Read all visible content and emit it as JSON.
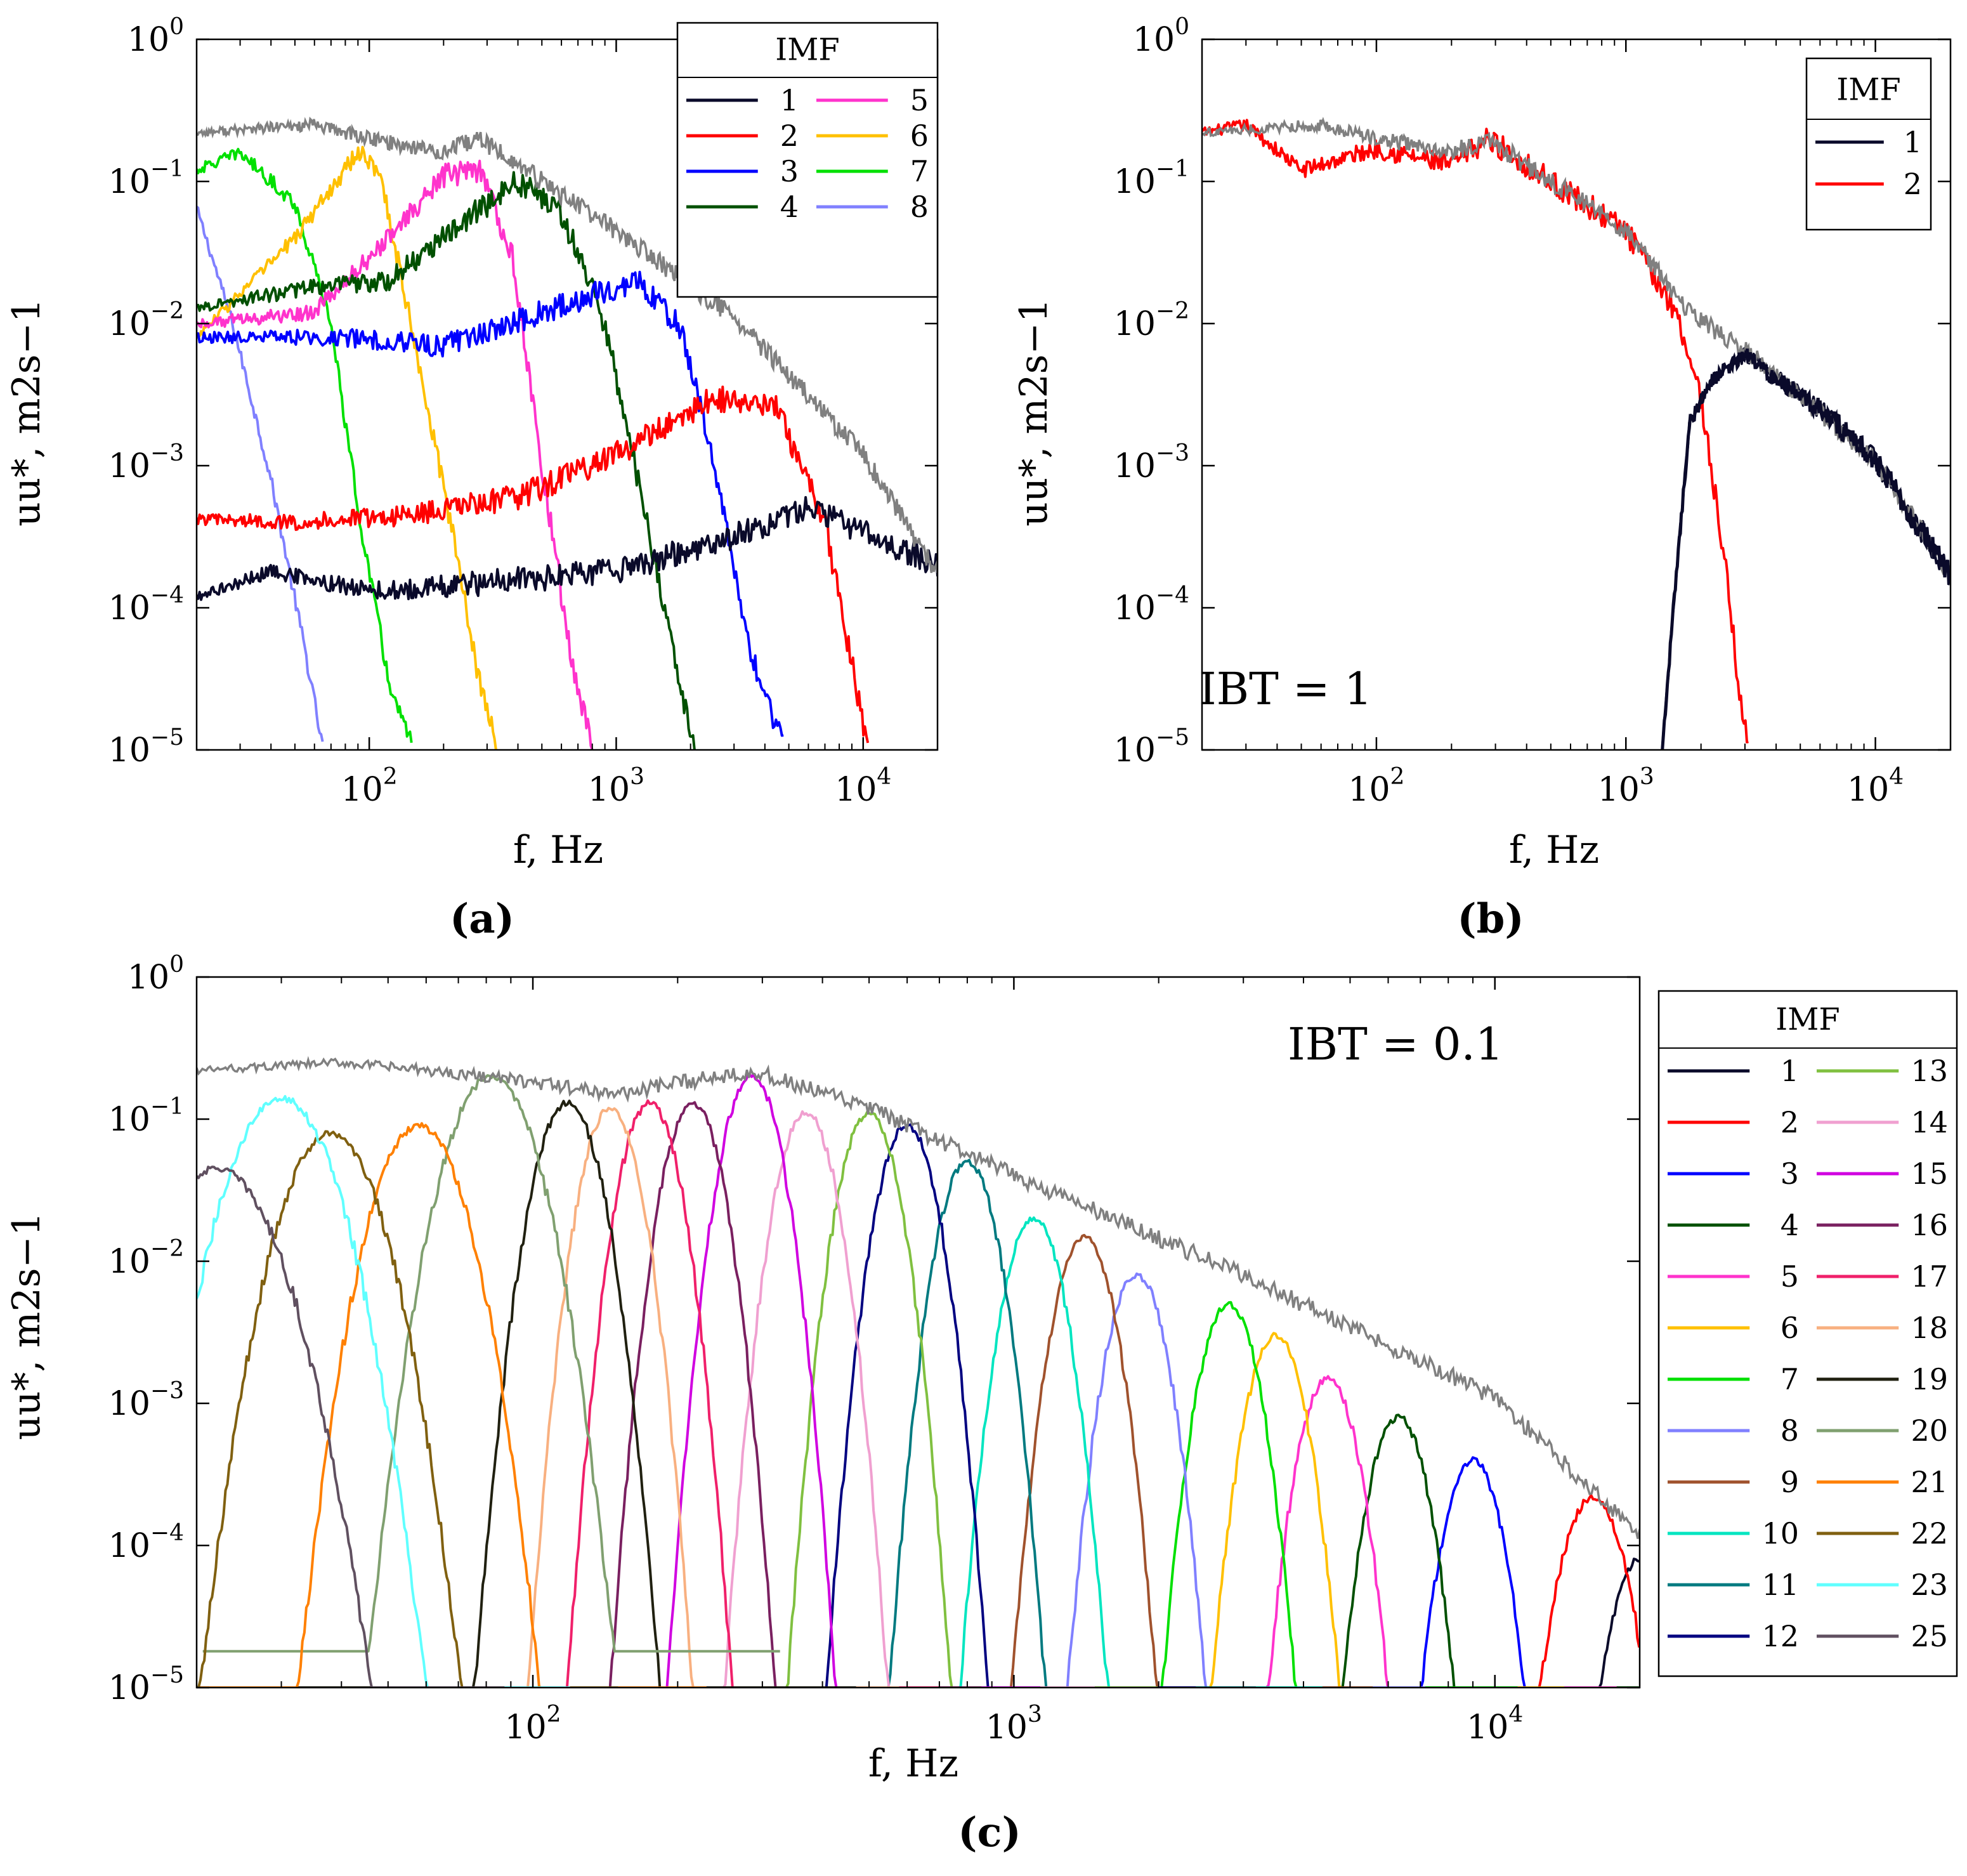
{
  "figure": {
    "captions": [
      "(a)",
      "(b)",
      "(c)"
    ],
    "x_axis_label": "f, Hz",
    "y_axis_label": "uu*, m2s−1"
  },
  "chart_data": [
    {
      "id": "a",
      "type": "line",
      "title": "",
      "caption": "(a)",
      "xlabel": "f, Hz",
      "ylabel": "uu*, m2s−1",
      "xscale": "log",
      "yscale": "log",
      "xlim": [
        20,
        20000
      ],
      "ylim": [
        1e-05,
        1
      ],
      "xticks": [
        {
          "v": 100,
          "label": "10^2"
        },
        {
          "v": 1000,
          "label": "10^3"
        },
        {
          "v": 10000,
          "label": "10^4"
        }
      ],
      "yticks": [
        {
          "v": 1,
          "label": "10^0"
        },
        {
          "v": 0.1,
          "label": "10^-1"
        },
        {
          "v": 0.01,
          "label": "10^-2"
        },
        {
          "v": 0.001,
          "label": "10^-3"
        },
        {
          "v": 0.0001,
          "label": "10^-4"
        },
        {
          "v": 1e-05,
          "label": "10^-5"
        }
      ],
      "legend": {
        "title": "IMF",
        "placement": "top-right",
        "columns": 2
      },
      "total": {
        "color": "#808080",
        "values": [
          [
            20,
            0.22
          ],
          [
            60,
            0.25
          ],
          [
            100,
            0.2
          ],
          [
            200,
            0.16
          ],
          [
            280,
            0.2
          ],
          [
            400,
            0.13
          ],
          [
            1000,
            0.045
          ],
          [
            3000,
            0.011
          ],
          [
            10000,
            0.0012
          ],
          [
            20000,
            0.00017
          ]
        ]
      },
      "series": [
        {
          "name": "1",
          "color": "#0a0a2a",
          "values": [
            [
              20,
              0.00012
            ],
            [
              40,
              0.00018
            ],
            [
              100,
              0.00013
            ],
            [
              300,
              0.00015
            ],
            [
              1000,
              0.00018
            ],
            [
              3000,
              0.00032
            ],
            [
              6000,
              0.0005
            ],
            [
              20000,
              0.0002
            ]
          ]
        },
        {
          "name": "2",
          "color": "#ff0000",
          "values": [
            [
              20,
              0.00042
            ],
            [
              50,
              0.0004
            ],
            [
              150,
              0.00045
            ],
            [
              400,
              0.0006
            ],
            [
              1000,
              0.0012
            ],
            [
              2500,
              0.003
            ],
            [
              4500,
              0.0025
            ],
            [
              7000,
              0.0004
            ],
            [
              9000,
              4e-05
            ],
            [
              10500,
              1e-05
            ]
          ]
        },
        {
          "name": "3",
          "color": "#0000ff",
          "values": [
            [
              20,
              0.008
            ],
            [
              80,
              0.008
            ],
            [
              200,
              0.007
            ],
            [
              500,
              0.012
            ],
            [
              1200,
              0.02
            ],
            [
              1800,
              0.01
            ],
            [
              2500,
              0.001
            ],
            [
              3500,
              5e-05
            ],
            [
              4800,
              1e-05
            ]
          ]
        },
        {
          "name": "4",
          "color": "#005000",
          "values": [
            [
              20,
              0.013
            ],
            [
              60,
              0.018
            ],
            [
              120,
              0.02
            ],
            [
              250,
              0.055
            ],
            [
              400,
              0.1
            ],
            [
              600,
              0.06
            ],
            [
              900,
              0.01
            ],
            [
              1300,
              0.0005
            ],
            [
              1800,
              3e-05
            ],
            [
              2100,
              1e-05
            ]
          ]
        },
        {
          "name": "5",
          "color": "#ff33cc",
          "values": [
            [
              20,
              0.01
            ],
            [
              60,
              0.012
            ],
            [
              120,
              0.04
            ],
            [
              200,
              0.11
            ],
            [
              280,
              0.12
            ],
            [
              380,
              0.03
            ],
            [
              500,
              0.001
            ],
            [
              650,
              5e-05
            ],
            [
              800,
              1e-05
            ]
          ]
        },
        {
          "name": "6",
          "color": "#ffc000",
          "values": [
            [
              20,
              0.008
            ],
            [
              50,
              0.04
            ],
            [
              90,
              0.16
            ],
            [
              110,
              0.12
            ],
            [
              160,
              0.005
            ],
            [
              230,
              0.0002
            ],
            [
              280,
              3e-05
            ],
            [
              330,
              1e-05
            ]
          ]
        },
        {
          "name": "7",
          "color": "#00e000",
          "values": [
            [
              20,
              0.12
            ],
            [
              30,
              0.16
            ],
            [
              50,
              0.07
            ],
            [
              70,
              0.01
            ],
            [
              90,
              0.0005
            ],
            [
              120,
              3e-05
            ],
            [
              150,
              1e-05
            ]
          ]
        },
        {
          "name": "8",
          "color": "#8080ff",
          "values": [
            [
              20,
              0.065
            ],
            [
              28,
              0.01
            ],
            [
              40,
              0.0008
            ],
            [
              55,
              5e-05
            ],
            [
              65,
              1e-05
            ]
          ]
        }
      ]
    },
    {
      "id": "b",
      "type": "line",
      "title": "",
      "caption": "(b)",
      "xlabel": "f, Hz",
      "ylabel": "uu*, m2s−1",
      "annotation": "IBT = 1",
      "xscale": "log",
      "yscale": "log",
      "xlim": [
        20,
        20000
      ],
      "ylim": [
        1e-05,
        1
      ],
      "xticks": [
        {
          "v": 100,
          "label": "10^2"
        },
        {
          "v": 1000,
          "label": "10^3"
        },
        {
          "v": 10000,
          "label": "10^4"
        }
      ],
      "yticks": [
        {
          "v": 1,
          "label": "10^0"
        },
        {
          "v": 0.1,
          "label": "10^-1"
        },
        {
          "v": 0.01,
          "label": "10^-2"
        },
        {
          "v": 0.001,
          "label": "10^-3"
        },
        {
          "v": 0.0001,
          "label": "10^-4"
        },
        {
          "v": 1e-05,
          "label": "10^-5"
        }
      ],
      "legend": {
        "title": "IMF",
        "placement": "top-right",
        "columns": 1
      },
      "total": {
        "color": "#808080",
        "values": [
          [
            20,
            0.22
          ],
          [
            60,
            0.25
          ],
          [
            100,
            0.2
          ],
          [
            200,
            0.16
          ],
          [
            280,
            0.2
          ],
          [
            400,
            0.13
          ],
          [
            1000,
            0.045
          ],
          [
            1800,
            0.012
          ],
          [
            3000,
            0.0065
          ],
          [
            10000,
            0.0011
          ],
          [
            20000,
            0.00017
          ]
        ]
      },
      "series": [
        {
          "name": "1",
          "color": "#0a0a2a",
          "values": [
            [
              1400,
              1e-05
            ],
            [
              1550,
              0.0001
            ],
            [
              1800,
              0.002
            ],
            [
              2200,
              0.004
            ],
            [
              3000,
              0.006
            ],
            [
              6000,
              0.0025
            ],
            [
              10000,
              0.0011
            ],
            [
              20000,
              0.00017
            ]
          ]
        },
        {
          "name": "2",
          "color": "#ff0000",
          "values": [
            [
              20,
              0.22
            ],
            [
              30,
              0.25
            ],
            [
              50,
              0.12
            ],
            [
              100,
              0.17
            ],
            [
              200,
              0.13
            ],
            [
              280,
              0.2
            ],
            [
              500,
              0.1
            ],
            [
              1000,
              0.045
            ],
            [
              1600,
              0.012
            ],
            [
              2000,
              0.003
            ],
            [
              2500,
              0.0002
            ],
            [
              2900,
              2e-05
            ],
            [
              3100,
              1e-05
            ]
          ]
        }
      ]
    },
    {
      "id": "c",
      "type": "line",
      "title": "",
      "caption": "(c)",
      "xlabel": "f, Hz",
      "ylabel": "uu*, m2s−1",
      "annotation": "IBT = 0.1",
      "xscale": "log",
      "yscale": "log",
      "xlim": [
        20,
        20000
      ],
      "ylim": [
        1e-05,
        1
      ],
      "xticks": [
        {
          "v": 100,
          "label": "10^2"
        },
        {
          "v": 1000,
          "label": "10^3"
        },
        {
          "v": 10000,
          "label": "10^4"
        }
      ],
      "yticks": [
        {
          "v": 1,
          "label": "10^0"
        },
        {
          "v": 0.1,
          "label": "10^-1"
        },
        {
          "v": 0.01,
          "label": "10^-2"
        },
        {
          "v": 0.001,
          "label": "10^-3"
        },
        {
          "v": 0.0001,
          "label": "10^-4"
        },
        {
          "v": 1e-05,
          "label": "10^-5"
        }
      ],
      "legend": {
        "title": "IMF",
        "placement": "outside-right",
        "columns": 2
      },
      "total": {
        "color": "#808080",
        "values": [
          [
            20,
            0.22
          ],
          [
            40,
            0.25
          ],
          [
            80,
            0.2
          ],
          [
            150,
            0.15
          ],
          [
            280,
            0.22
          ],
          [
            500,
            0.12
          ],
          [
            1000,
            0.04
          ],
          [
            3000,
            0.008
          ],
          [
            10000,
            0.0011
          ],
          [
            20000,
            0.00012
          ]
        ]
      },
      "series": [
        {
          "name": "1",
          "color": "#0a0a2a",
          "peak": [
            20000,
            8e-05
          ],
          "width": 0.08,
          "floor": 1e-05
        },
        {
          "name": "2",
          "color": "#ff0000",
          "peak": [
            16000,
            0.00022
          ],
          "width": 0.09,
          "floor": 1e-05
        },
        {
          "name": "3",
          "color": "#0000ff",
          "peak": [
            9000,
            0.0004
          ],
          "width": 0.08,
          "floor": 1e-05
        },
        {
          "name": "4",
          "color": "#005000",
          "peak": [
            6300,
            0.0008
          ],
          "width": 0.08,
          "floor": 1e-05
        },
        {
          "name": "5",
          "color": "#ff33cc",
          "peak": [
            4500,
            0.0015
          ],
          "width": 0.08,
          "floor": 1e-05
        },
        {
          "name": "6",
          "color": "#ffc000",
          "peak": [
            3500,
            0.003
          ],
          "width": 0.08,
          "floor": 1e-05
        },
        {
          "name": "7",
          "color": "#00e000",
          "peak": [
            2800,
            0.005
          ],
          "width": 0.08,
          "floor": 1e-05
        },
        {
          "name": "8",
          "color": "#8080ff",
          "peak": [
            1800,
            0.008
          ],
          "width": 0.08,
          "floor": 1e-05
        },
        {
          "name": "9",
          "color": "#a0522d",
          "peak": [
            1400,
            0.015
          ],
          "width": 0.08,
          "floor": 1e-05
        },
        {
          "name": "10",
          "color": "#00e5c0",
          "peak": [
            1100,
            0.02
          ],
          "width": 0.08,
          "floor": 1e-05
        },
        {
          "name": "11",
          "color": "#007a80",
          "peak": [
            800,
            0.05
          ],
          "width": 0.08,
          "floor": 1e-05
        },
        {
          "name": "12",
          "color": "#000080",
          "peak": [
            600,
            0.09
          ],
          "width": 0.08,
          "floor": 1e-05
        },
        {
          "name": "13",
          "color": "#80c040",
          "peak": [
            500,
            0.11
          ],
          "width": 0.08,
          "floor": 1e-05
        },
        {
          "name": "14",
          "color": "#f0a0d0",
          "peak": [
            370,
            0.11
          ],
          "width": 0.08,
          "floor": 1e-05
        },
        {
          "name": "15",
          "color": "#d000e0",
          "peak": [
            285,
            0.2
          ],
          "width": 0.08,
          "floor": 1e-05
        },
        {
          "name": "16",
          "color": "#7a2060",
          "peak": [
            215,
            0.13
          ],
          "width": 0.08,
          "floor": 1e-05
        },
        {
          "name": "17",
          "color": "#f0206a",
          "peak": [
            175,
            0.13
          ],
          "width": 0.08,
          "floor": 1e-05
        },
        {
          "name": "18",
          "color": "#f8b080",
          "peak": [
            145,
            0.12
          ],
          "width": 0.08,
          "floor": 1e-05
        },
        {
          "name": "19",
          "color": "#202010",
          "peak": [
            118,
            0.13
          ],
          "width": 0.09,
          "floor": 1e-05
        },
        {
          "name": "20",
          "color": "#80a070",
          "peak": [
            82,
            0.2
          ],
          "width": 0.12,
          "floor": 1.8e-05
        },
        {
          "name": "21",
          "color": "#ff8000",
          "peak": [
            58,
            0.09
          ],
          "width": 0.12,
          "floor": 1e-05
        },
        {
          "name": "22",
          "color": "#806010",
          "peak": [
            38,
            0.08
          ],
          "width": 0.13,
          "floor": 1e-05
        },
        {
          "name": "23",
          "color": "#60ffff",
          "peak": [
            30,
            0.14
          ],
          "width": 0.14,
          "floor": 1e-05
        },
        {
          "name": "25",
          "color": "#605060",
          "peak": [
            22,
            0.045
          ],
          "width": 0.16,
          "floor": 1e-05
        }
      ]
    }
  ]
}
